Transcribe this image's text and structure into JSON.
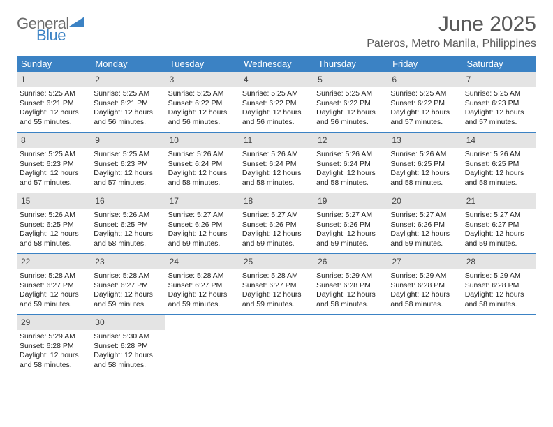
{
  "logo": {
    "line1": "General",
    "line2": "Blue"
  },
  "title": "June 2025",
  "subtitle": "Pateros, Metro Manila, Philippines",
  "colors": {
    "header_bg": "#3b82c4",
    "header_text": "#ffffff",
    "daynum_bg": "#e4e4e4",
    "border": "#3b82c4",
    "title_color": "#5a5a5a",
    "logo_gray": "#6b6b6b",
    "logo_blue": "#3b82c4"
  },
  "weekdays": [
    "Sunday",
    "Monday",
    "Tuesday",
    "Wednesday",
    "Thursday",
    "Friday",
    "Saturday"
  ],
  "cells": [
    {
      "n": "1",
      "sr": "5:25 AM",
      "ss": "6:21 PM",
      "dl": "12 hours and 55 minutes."
    },
    {
      "n": "2",
      "sr": "5:25 AM",
      "ss": "6:21 PM",
      "dl": "12 hours and 56 minutes."
    },
    {
      "n": "3",
      "sr": "5:25 AM",
      "ss": "6:22 PM",
      "dl": "12 hours and 56 minutes."
    },
    {
      "n": "4",
      "sr": "5:25 AM",
      "ss": "6:22 PM",
      "dl": "12 hours and 56 minutes."
    },
    {
      "n": "5",
      "sr": "5:25 AM",
      "ss": "6:22 PM",
      "dl": "12 hours and 56 minutes."
    },
    {
      "n": "6",
      "sr": "5:25 AM",
      "ss": "6:22 PM",
      "dl": "12 hours and 57 minutes."
    },
    {
      "n": "7",
      "sr": "5:25 AM",
      "ss": "6:23 PM",
      "dl": "12 hours and 57 minutes."
    },
    {
      "n": "8",
      "sr": "5:25 AM",
      "ss": "6:23 PM",
      "dl": "12 hours and 57 minutes."
    },
    {
      "n": "9",
      "sr": "5:25 AM",
      "ss": "6:23 PM",
      "dl": "12 hours and 57 minutes."
    },
    {
      "n": "10",
      "sr": "5:26 AM",
      "ss": "6:24 PM",
      "dl": "12 hours and 58 minutes."
    },
    {
      "n": "11",
      "sr": "5:26 AM",
      "ss": "6:24 PM",
      "dl": "12 hours and 58 minutes."
    },
    {
      "n": "12",
      "sr": "5:26 AM",
      "ss": "6:24 PM",
      "dl": "12 hours and 58 minutes."
    },
    {
      "n": "13",
      "sr": "5:26 AM",
      "ss": "6:25 PM",
      "dl": "12 hours and 58 minutes."
    },
    {
      "n": "14",
      "sr": "5:26 AM",
      "ss": "6:25 PM",
      "dl": "12 hours and 58 minutes."
    },
    {
      "n": "15",
      "sr": "5:26 AM",
      "ss": "6:25 PM",
      "dl": "12 hours and 58 minutes."
    },
    {
      "n": "16",
      "sr": "5:26 AM",
      "ss": "6:25 PM",
      "dl": "12 hours and 58 minutes."
    },
    {
      "n": "17",
      "sr": "5:27 AM",
      "ss": "6:26 PM",
      "dl": "12 hours and 59 minutes."
    },
    {
      "n": "18",
      "sr": "5:27 AM",
      "ss": "6:26 PM",
      "dl": "12 hours and 59 minutes."
    },
    {
      "n": "19",
      "sr": "5:27 AM",
      "ss": "6:26 PM",
      "dl": "12 hours and 59 minutes."
    },
    {
      "n": "20",
      "sr": "5:27 AM",
      "ss": "6:26 PM",
      "dl": "12 hours and 59 minutes."
    },
    {
      "n": "21",
      "sr": "5:27 AM",
      "ss": "6:27 PM",
      "dl": "12 hours and 59 minutes."
    },
    {
      "n": "22",
      "sr": "5:28 AM",
      "ss": "6:27 PM",
      "dl": "12 hours and 59 minutes."
    },
    {
      "n": "23",
      "sr": "5:28 AM",
      "ss": "6:27 PM",
      "dl": "12 hours and 59 minutes."
    },
    {
      "n": "24",
      "sr": "5:28 AM",
      "ss": "6:27 PM",
      "dl": "12 hours and 59 minutes."
    },
    {
      "n": "25",
      "sr": "5:28 AM",
      "ss": "6:27 PM",
      "dl": "12 hours and 59 minutes."
    },
    {
      "n": "26",
      "sr": "5:29 AM",
      "ss": "6:28 PM",
      "dl": "12 hours and 58 minutes."
    },
    {
      "n": "27",
      "sr": "5:29 AM",
      "ss": "6:28 PM",
      "dl": "12 hours and 58 minutes."
    },
    {
      "n": "28",
      "sr": "5:29 AM",
      "ss": "6:28 PM",
      "dl": "12 hours and 58 minutes."
    },
    {
      "n": "29",
      "sr": "5:29 AM",
      "ss": "6:28 PM",
      "dl": "12 hours and 58 minutes."
    },
    {
      "n": "30",
      "sr": "5:30 AM",
      "ss": "6:28 PM",
      "dl": "12 hours and 58 minutes."
    }
  ],
  "labels": {
    "sunrise_prefix": "Sunrise: ",
    "sunset_prefix": "Sunset: ",
    "daylight_prefix": "Daylight: "
  }
}
